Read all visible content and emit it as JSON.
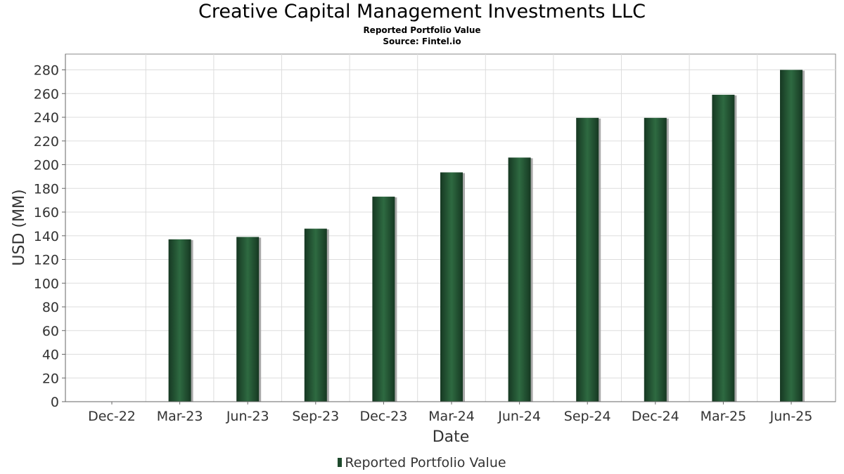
{
  "chart_data": {
    "type": "bar",
    "title": "Creative Capital Management Investments LLC",
    "subtitles": [
      "Reported Portfolio Value",
      "Source: Fintel.io"
    ],
    "xlabel": "Date",
    "ylabel": "USD (MM)",
    "categories": [
      "Dec-22",
      "Mar-23",
      "Jun-23",
      "Sep-23",
      "Dec-23",
      "Mar-24",
      "Jun-24",
      "Sep-24",
      "Dec-24",
      "Mar-25",
      "Jun-25"
    ],
    "series": [
      {
        "name": "Reported Portfolio Value",
        "values": [
          0.3,
          137,
          139,
          146,
          173,
          193.5,
          206,
          239.5,
          239.5,
          259,
          280
        ]
      }
    ],
    "ylim": [
      0,
      294
    ],
    "yticks": [
      0,
      20,
      40,
      60,
      80,
      100,
      120,
      140,
      160,
      180,
      200,
      220,
      240,
      260,
      280
    ],
    "grid": true,
    "legend_position": "bottom-center",
    "colors": {
      "bar": "#1e4a2c",
      "bar_highlight": "#2f6b42",
      "bar_shadow": "#9a9a9a",
      "grid": "#dddddd",
      "frame": "#888888"
    }
  }
}
